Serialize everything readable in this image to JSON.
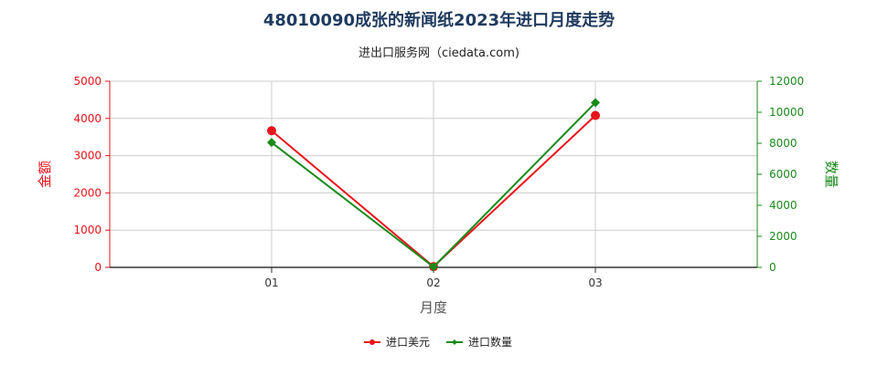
{
  "chart_data": {
    "type": "line",
    "title": "48010090成张的新闻纸2023年进口月度走势",
    "subtitle": "进出口服务网（ciedata.com)",
    "xlabel": "月度",
    "ylabel_left": "金额",
    "ylabel_right": "数量",
    "categories": [
      "01",
      "02",
      "03"
    ],
    "ylim_left": [
      0,
      5000
    ],
    "ylim_right": [
      0,
      12000
    ],
    "yticks_left": [
      "0",
      "1000",
      "2000",
      "3000",
      "4000",
      "5000"
    ],
    "yticks_right": [
      "0",
      "2000",
      "4000",
      "6000",
      "8000",
      "10000",
      "12000"
    ],
    "grid": true,
    "legend_position": "bottom",
    "series": [
      {
        "name": "进口美元",
        "axis": "left",
        "color": "#e8141b",
        "marker": "circle",
        "values": [
          3670,
          20,
          4080
        ]
      },
      {
        "name": "进口数量",
        "axis": "right",
        "color": "#1a8a1a",
        "marker": "diamond",
        "values": [
          8050,
          30,
          10620
        ]
      }
    ],
    "colors": {
      "left_axis": "#e8141b",
      "right_axis": "#1a8a1a",
      "title": "#1f3a5f",
      "grid": "#cccccc"
    }
  }
}
